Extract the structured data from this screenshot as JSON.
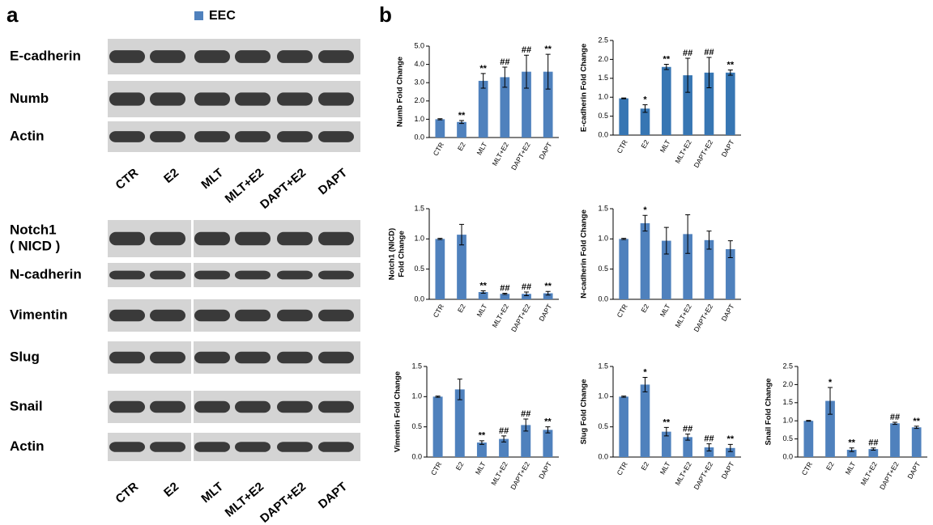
{
  "panel_a": {
    "label": "a",
    "legend": "EEC",
    "legend_color": "#4f81bd",
    "blots_top": [
      "E-cadherin",
      "Numb",
      "Actin"
    ],
    "lanes_top": [
      "CTR",
      "E2",
      "MLT",
      "MLT+E2",
      "DAPT+E2",
      "DAPT"
    ],
    "blots_bottom": [
      [
        "Notch1",
        "( NICD )"
      ],
      [
        "N-cadherin"
      ],
      [
        "Vimentin"
      ],
      [
        "Slug"
      ],
      [
        "Snail"
      ],
      [
        "Actin"
      ]
    ],
    "lanes_bottom": [
      "CTR",
      "E2",
      "MLT",
      "MLT+E2",
      "DAPT+E2",
      "DAPT"
    ]
  },
  "panel_b": {
    "label": "b"
  },
  "chart_data": [
    {
      "type": "bar",
      "ylabel": "Numb Fold Change",
      "color": "#4f81bd",
      "categories": [
        "CTR",
        "E2",
        "MLT",
        "MLT+E2",
        "DAPT+E2",
        "DAPT"
      ],
      "values": [
        1.0,
        0.85,
        3.1,
        3.3,
        3.6,
        3.6
      ],
      "errors": [
        0.03,
        0.08,
        0.4,
        0.55,
        0.9,
        0.95
      ],
      "annotations": [
        null,
        "**",
        "**",
        "##",
        "##",
        "**"
      ],
      "ylim": [
        0,
        5
      ],
      "yticks": [
        {
          "value": 0,
          "label": "0.0"
        },
        {
          "value": 1,
          "label": "1.0"
        },
        {
          "value": 2,
          "label": "2.0"
        },
        {
          "value": 3,
          "label": "3.0"
        },
        {
          "value": 4,
          "label": "4.0"
        },
        {
          "value": 5,
          "label": "5.0"
        }
      ]
    },
    {
      "type": "bar",
      "ylabel": "E-cadherin Fold Change",
      "color": "#3776b3",
      "categories": [
        "CTR",
        "E2",
        "MLT",
        "MLT+E2",
        "DAPT+E2",
        "DAPT"
      ],
      "values": [
        0.97,
        0.7,
        1.8,
        1.58,
        1.65,
        1.65
      ],
      "errors": [
        0.01,
        0.1,
        0.07,
        0.45,
        0.4,
        0.07
      ],
      "annotations": [
        null,
        "*",
        "**",
        "##",
        "##",
        "**"
      ],
      "ylim": [
        0,
        2.5
      ],
      "yticks": [
        {
          "value": 0,
          "label": "0.0"
        },
        0.5,
        {
          "value": 1,
          "label": "1.0"
        },
        1.5,
        {
          "value": 2,
          "label": "2.0"
        },
        2.5
      ]
    },
    {
      "type": "bar",
      "ylabel": [
        "Notch1 (NICD)",
        "Fold Change"
      ],
      "color": "#4f81bd",
      "categories": [
        "CTR",
        "E2",
        "MLT",
        "MLT+E2",
        "DAPT+E2",
        "DAPT"
      ],
      "values": [
        1.0,
        1.07,
        0.12,
        0.09,
        0.09,
        0.1
      ],
      "errors": [
        0.01,
        0.17,
        0.02,
        0.01,
        0.03,
        0.03
      ],
      "annotations": [
        null,
        null,
        "**",
        "##",
        "##",
        "**"
      ],
      "ylim": [
        0,
        1.5
      ],
      "yticks": [
        {
          "value": 0,
          "label": "0.0"
        },
        0.5,
        {
          "value": 1,
          "label": "1.0"
        },
        1.5
      ]
    },
    {
      "type": "bar",
      "ylabel": "N-cadherin Fold Change",
      "color": "#4f81bd",
      "categories": [
        "CTR",
        "E2",
        "MLT",
        "MLT+E2",
        "DAPT+E2",
        "DAPT"
      ],
      "values": [
        1.0,
        1.26,
        0.97,
        1.08,
        0.98,
        0.83
      ],
      "errors": [
        0.01,
        0.13,
        0.22,
        0.32,
        0.15,
        0.14
      ],
      "annotations": [
        null,
        "*",
        null,
        null,
        null,
        null
      ],
      "ylim": [
        0,
        1.5
      ],
      "yticks": [
        {
          "value": 0,
          "label": "0.0"
        },
        0.5,
        {
          "value": 1,
          "label": "1.0"
        },
        1.5
      ]
    },
    {
      "type": "bar",
      "ylabel": "Vimentin Fold Change",
      "color": "#4f81bd",
      "categories": [
        "CTR",
        "E2",
        "MLT",
        "MLT+E2",
        "DAPT+E2",
        "DAPT"
      ],
      "values": [
        1.0,
        1.12,
        0.24,
        0.3,
        0.53,
        0.45
      ],
      "errors": [
        0.01,
        0.17,
        0.03,
        0.05,
        0.1,
        0.05
      ],
      "annotations": [
        null,
        null,
        "**",
        "##",
        "##",
        "**"
      ],
      "ylim": [
        0,
        1.5
      ],
      "yticks": [
        {
          "value": 0,
          "label": "0.0"
        },
        0.5,
        {
          "value": 1,
          "label": "1.0"
        },
        1.5
      ]
    },
    {
      "type": "bar",
      "ylabel": "Slug Fold Change",
      "color": "#4f81bd",
      "categories": [
        "CTR",
        "E2",
        "MLT",
        "MLT+E2",
        "DAPT+E2",
        "DAPT"
      ],
      "values": [
        1.0,
        1.2,
        0.42,
        0.33,
        0.16,
        0.15
      ],
      "errors": [
        0.01,
        0.12,
        0.07,
        0.05,
        0.06,
        0.06
      ],
      "annotations": [
        null,
        "*",
        "**",
        "##",
        "##",
        "**"
      ],
      "ylim": [
        0,
        1.5
      ],
      "yticks": [
        {
          "value": 0,
          "label": "0.0"
        },
        0.5,
        {
          "value": 1,
          "label": "1.0"
        },
        1.5
      ]
    },
    {
      "type": "bar",
      "ylabel": "Snail Fold Change",
      "color": "#4f81bd",
      "categories": [
        "CTR",
        "E2",
        "MLT",
        "MLT+E2",
        "DAPT+E2",
        "DAPT"
      ],
      "values": [
        1.0,
        1.55,
        0.2,
        0.22,
        0.93,
        0.82
      ],
      "errors": [
        0.01,
        0.37,
        0.05,
        0.03,
        0.03,
        0.03
      ],
      "annotations": [
        null,
        "*",
        "**",
        "##",
        "##",
        "**"
      ],
      "ylim": [
        0,
        2.5
      ],
      "yticks": [
        {
          "value": 0,
          "label": "0.0"
        },
        0.5,
        {
          "value": 1,
          "label": "1.0"
        },
        1.5,
        {
          "value": 2,
          "label": "2.0"
        },
        2.5
      ]
    }
  ]
}
